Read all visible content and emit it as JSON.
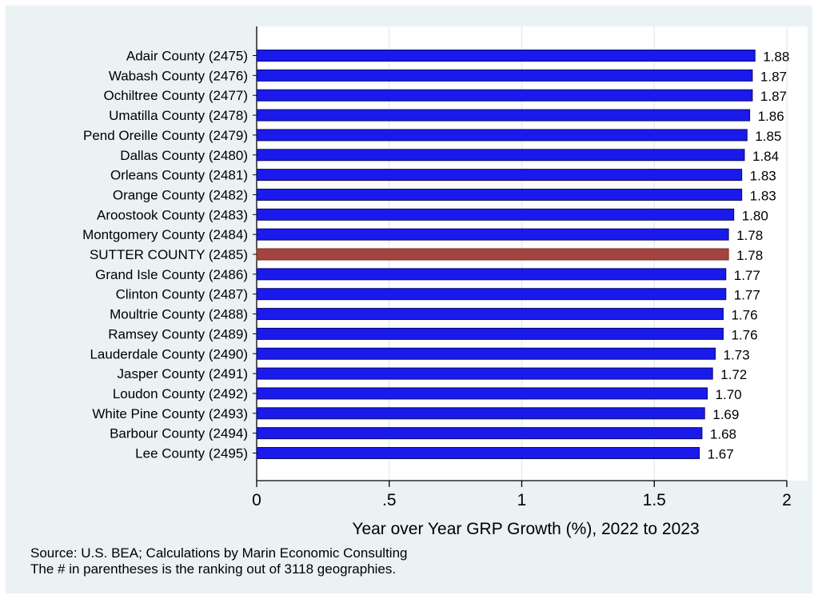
{
  "chart_data": {
    "type": "bar",
    "orientation": "horizontal",
    "categories": [
      "Adair County (2475)",
      "Wabash County (2476)",
      "Ochiltree County (2477)",
      "Umatilla County (2478)",
      "Pend Oreille County (2479)",
      "Dallas County (2480)",
      "Orleans County (2481)",
      "Orange County (2482)",
      "Aroostook County (2483)",
      "Montgomery County (2484)",
      "SUTTER COUNTY (2485)",
      "Grand Isle County (2486)",
      "Clinton County (2487)",
      "Moultrie County (2488)",
      "Ramsey County (2489)",
      "Lauderdale County (2490)",
      "Jasper County (2491)",
      "Loudon County (2492)",
      "White Pine County (2493)",
      "Barbour County (2494)",
      "Lee County (2495)"
    ],
    "values": [
      1.88,
      1.87,
      1.87,
      1.86,
      1.85,
      1.84,
      1.83,
      1.83,
      1.8,
      1.78,
      1.78,
      1.77,
      1.77,
      1.76,
      1.76,
      1.73,
      1.72,
      1.7,
      1.69,
      1.68,
      1.67
    ],
    "value_labels": [
      "1.88",
      "1.87",
      "1.87",
      "1.86",
      "1.85",
      "1.84",
      "1.83",
      "1.83",
      "1.80",
      "1.78",
      "1.78",
      "1.77",
      "1.77",
      "1.76",
      "1.76",
      "1.73",
      "1.72",
      "1.70",
      "1.69",
      "1.68",
      "1.67"
    ],
    "highlight_index": 10,
    "xlim": [
      0,
      2
    ],
    "xticks": [
      0,
      0.5,
      1,
      1.5,
      2
    ],
    "xtick_labels": [
      "0",
      ".5",
      "1",
      "1.5",
      "2"
    ],
    "xlabel": "Year over Year GRP Growth (%), 2022 to 2023",
    "ylabel": "",
    "title": "",
    "grid": "vertical",
    "colors": {
      "bar": "#1a1aec",
      "bar_edge": "#0b0b66",
      "highlight": "#a3443f",
      "highlight_edge": "#6e2b28",
      "plot_bg": "#ffffff",
      "outer_bg": "#eaf2f3",
      "grid": "#e6eef0"
    }
  },
  "notes": {
    "source": "Source: U.S. BEA; Calculations by Marin Economic Consulting",
    "ranking": "The # in parentheses is the ranking out of 3118 geographies."
  }
}
